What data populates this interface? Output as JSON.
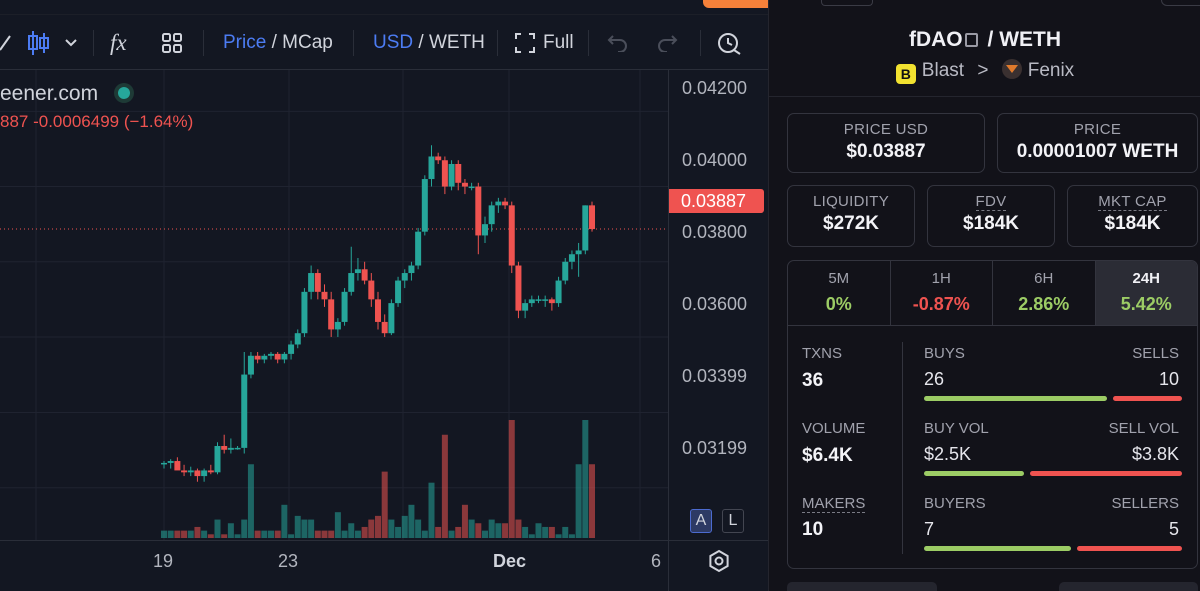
{
  "toolbar": {
    "formula_icon": "fx",
    "price_label": "Price",
    "mcap_label": "MCap",
    "usd_label": "USD",
    "weth_label": "WETH",
    "full_label": "Full",
    "separator": "/"
  },
  "legend": {
    "site": "eener.com",
    "change": "887  -0.0006499 (−1.64%)"
  },
  "axis": {
    "price_ticks": [
      "0.04200",
      "0.04000",
      "0.03800",
      "0.03600",
      "0.03399",
      "0.03199"
    ],
    "current_price_tag": "0.03887",
    "time_ticks": [
      "19",
      "23",
      "Dec",
      "6"
    ],
    "mode_a": "A",
    "mode_l": "L"
  },
  "chart_data": {
    "type": "candlestick",
    "ylim": [
      0.0306,
      0.0431
    ],
    "current_price": 0.03887,
    "candles": [
      {
        "o": 0.03265,
        "h": 0.0327,
        "l": 0.0325,
        "c": 0.03265,
        "v": 2
      },
      {
        "o": 0.03265,
        "h": 0.03275,
        "l": 0.0325,
        "c": 0.0327,
        "v": 2
      },
      {
        "o": 0.0327,
        "h": 0.0328,
        "l": 0.03255,
        "c": 0.03245,
        "v": 2
      },
      {
        "o": 0.03245,
        "h": 0.0326,
        "l": 0.0323,
        "c": 0.0324,
        "v": 2
      },
      {
        "o": 0.0324,
        "h": 0.03255,
        "l": 0.0323,
        "c": 0.03245,
        "v": 2
      },
      {
        "o": 0.03245,
        "h": 0.0325,
        "l": 0.03215,
        "c": 0.0323,
        "v": 3
      },
      {
        "o": 0.0323,
        "h": 0.0325,
        "l": 0.03215,
        "c": 0.03245,
        "v": 2
      },
      {
        "o": 0.03245,
        "h": 0.0326,
        "l": 0.03235,
        "c": 0.0324,
        "v": 1
      },
      {
        "o": 0.0324,
        "h": 0.0332,
        "l": 0.03235,
        "c": 0.0331,
        "v": 5
      },
      {
        "o": 0.0331,
        "h": 0.0334,
        "l": 0.0329,
        "c": 0.033,
        "v": 1
      },
      {
        "o": 0.033,
        "h": 0.0333,
        "l": 0.0329,
        "c": 0.03305,
        "v": 4
      },
      {
        "o": 0.03305,
        "h": 0.0331,
        "l": 0.033,
        "c": 0.03305,
        "v": 1
      },
      {
        "o": 0.03305,
        "h": 0.0356,
        "l": 0.0329,
        "c": 0.035,
        "v": 5
      },
      {
        "o": 0.035,
        "h": 0.0356,
        "l": 0.0349,
        "c": 0.0355,
        "v": 20
      },
      {
        "o": 0.0355,
        "h": 0.0356,
        "l": 0.0353,
        "c": 0.0354,
        "v": 2
      },
      {
        "o": 0.0354,
        "h": 0.03555,
        "l": 0.0353,
        "c": 0.0355,
        "v": 2
      },
      {
        "o": 0.0355,
        "h": 0.0356,
        "l": 0.0354,
        "c": 0.03555,
        "v": 2
      },
      {
        "o": 0.03555,
        "h": 0.0356,
        "l": 0.0353,
        "c": 0.0354,
        "v": 2
      },
      {
        "o": 0.0354,
        "h": 0.0356,
        "l": 0.0353,
        "c": 0.03555,
        "v": 9
      },
      {
        "o": 0.03555,
        "h": 0.0359,
        "l": 0.0354,
        "c": 0.0358,
        "v": 1
      },
      {
        "o": 0.0358,
        "h": 0.0362,
        "l": 0.0357,
        "c": 0.0361,
        "v": 6
      },
      {
        "o": 0.0361,
        "h": 0.0373,
        "l": 0.036,
        "c": 0.0372,
        "v": 5
      },
      {
        "o": 0.0372,
        "h": 0.0379,
        "l": 0.037,
        "c": 0.0377,
        "v": 5
      },
      {
        "o": 0.0377,
        "h": 0.0378,
        "l": 0.037,
        "c": 0.0372,
        "v": 2
      },
      {
        "o": 0.0372,
        "h": 0.0374,
        "l": 0.0368,
        "c": 0.037,
        "v": 2
      },
      {
        "o": 0.037,
        "h": 0.0372,
        "l": 0.036,
        "c": 0.0362,
        "v": 2
      },
      {
        "o": 0.0362,
        "h": 0.0365,
        "l": 0.036,
        "c": 0.0364,
        "v": 7
      },
      {
        "o": 0.0364,
        "h": 0.0373,
        "l": 0.0363,
        "c": 0.0372,
        "v": 2
      },
      {
        "o": 0.0372,
        "h": 0.0384,
        "l": 0.0371,
        "c": 0.0377,
        "v": 4
      },
      {
        "o": 0.0377,
        "h": 0.0381,
        "l": 0.0375,
        "c": 0.0378,
        "v": 2
      },
      {
        "o": 0.0378,
        "h": 0.038,
        "l": 0.0374,
        "c": 0.0375,
        "v": 3
      },
      {
        "o": 0.0375,
        "h": 0.0377,
        "l": 0.0368,
        "c": 0.037,
        "v": 5
      },
      {
        "o": 0.037,
        "h": 0.0372,
        "l": 0.0362,
        "c": 0.0364,
        "v": 6
      },
      {
        "o": 0.0364,
        "h": 0.0366,
        "l": 0.036,
        "c": 0.0361,
        "v": 18
      },
      {
        "o": 0.0361,
        "h": 0.037,
        "l": 0.03605,
        "c": 0.0369,
        "v": 5
      },
      {
        "o": 0.0369,
        "h": 0.0376,
        "l": 0.0368,
        "c": 0.0375,
        "v": 3
      },
      {
        "o": 0.0375,
        "h": 0.0378,
        "l": 0.0373,
        "c": 0.0377,
        "v": 6
      },
      {
        "o": 0.0377,
        "h": 0.038,
        "l": 0.0375,
        "c": 0.0379,
        "v": 9
      },
      {
        "o": 0.0379,
        "h": 0.0389,
        "l": 0.0378,
        "c": 0.0388,
        "v": 5
      },
      {
        "o": 0.0388,
        "h": 0.0403,
        "l": 0.0387,
        "c": 0.0402,
        "v": 2
      },
      {
        "o": 0.0402,
        "h": 0.0411,
        "l": 0.04,
        "c": 0.0408,
        "v": 15
      },
      {
        "o": 0.0408,
        "h": 0.0409,
        "l": 0.0406,
        "c": 0.0407,
        "v": 3
      },
      {
        "o": 0.0407,
        "h": 0.0408,
        "l": 0.0398,
        "c": 0.04,
        "v": 28
      },
      {
        "o": 0.04,
        "h": 0.0407,
        "l": 0.0399,
        "c": 0.0406,
        "v": 2
      },
      {
        "o": 0.0406,
        "h": 0.0407,
        "l": 0.0399,
        "c": 0.0401,
        "v": 3
      },
      {
        "o": 0.0401,
        "h": 0.0402,
        "l": 0.0398,
        "c": 0.04,
        "v": 9
      },
      {
        "o": 0.04,
        "h": 0.0401,
        "l": 0.0399,
        "c": 0.04,
        "v": 5
      },
      {
        "o": 0.04,
        "h": 0.0401,
        "l": 0.0382,
        "c": 0.0387,
        "v": 4
      },
      {
        "o": 0.0387,
        "h": 0.0392,
        "l": 0.0385,
        "c": 0.039,
        "v": 2
      },
      {
        "o": 0.039,
        "h": 0.0396,
        "l": 0.0388,
        "c": 0.0395,
        "v": 5
      },
      {
        "o": 0.0395,
        "h": 0.0397,
        "l": 0.0393,
        "c": 0.0396,
        "v": 4
      },
      {
        "o": 0.0396,
        "h": 0.0397,
        "l": 0.0394,
        "c": 0.0395,
        "v": 4
      },
      {
        "o": 0.0395,
        "h": 0.0396,
        "l": 0.0377,
        "c": 0.0379,
        "v": 32
      },
      {
        "o": 0.0379,
        "h": 0.038,
        "l": 0.0365,
        "c": 0.0367,
        "v": 5
      },
      {
        "o": 0.0367,
        "h": 0.037,
        "l": 0.0365,
        "c": 0.0369,
        "v": 3
      },
      {
        "o": 0.0369,
        "h": 0.0371,
        "l": 0.0368,
        "c": 0.037,
        "v": 1
      },
      {
        "o": 0.037,
        "h": 0.0371,
        "l": 0.0369,
        "c": 0.037,
        "v": 4
      },
      {
        "o": 0.037,
        "h": 0.0371,
        "l": 0.0368,
        "c": 0.037,
        "v": 3
      },
      {
        "o": 0.037,
        "h": 0.03705,
        "l": 0.0367,
        "c": 0.0369,
        "v": 3
      },
      {
        "o": 0.0369,
        "h": 0.0376,
        "l": 0.0368,
        "c": 0.0375,
        "v": 1
      },
      {
        "o": 0.0375,
        "h": 0.0381,
        "l": 0.0374,
        "c": 0.038,
        "v": 3
      },
      {
        "o": 0.038,
        "h": 0.0383,
        "l": 0.0378,
        "c": 0.0382,
        "v": 1
      },
      {
        "o": 0.0382,
        "h": 0.0385,
        "l": 0.0376,
        "c": 0.0383,
        "v": 20
      },
      {
        "o": 0.0383,
        "h": 0.0395,
        "l": 0.0382,
        "c": 0.0395,
        "v": 32
      },
      {
        "o": 0.0395,
        "h": 0.0396,
        "l": 0.0388,
        "c": 0.03887,
        "v": 20
      }
    ]
  },
  "pair": {
    "base": "fDAO",
    "quote": "WETH",
    "separator": "/",
    "chain": "Blast",
    "chain_badge": "B",
    "breadcrumb_arrow": ">",
    "dex": "Fenix"
  },
  "stats_top": {
    "price_usd_label": "PRICE USD",
    "price_usd": "$0.03887",
    "price_label": "PRICE",
    "price": "0.00001007 WETH",
    "liquidity_label": "LIQUIDITY",
    "liquidity": "$272K",
    "fdv_label": "FDV",
    "fdv": "$184K",
    "mktcap_label": "MKT CAP",
    "mktcap": "$184K"
  },
  "timeframes": [
    {
      "label": "5M",
      "value": "0%",
      "sign": "pos"
    },
    {
      "label": "1H",
      "value": "-0.87%",
      "sign": "neg"
    },
    {
      "label": "6H",
      "value": "2.86%",
      "sign": "pos"
    },
    {
      "label": "24H",
      "value": "5.42%",
      "sign": "pos"
    }
  ],
  "txn_stats": {
    "txns_label": "TXNS",
    "txns": "36",
    "buys_label": "BUYS",
    "buys": "26",
    "sells_label": "SELLS",
    "sells": "10",
    "volume_label": "VOLUME",
    "volume": "$6.4K",
    "buy_vol_label": "BUY VOL",
    "buy_vol": "$2.5K",
    "sell_vol_label": "SELL VOL",
    "sell_vol": "$3.8K",
    "makers_label": "MAKERS",
    "makers": "10",
    "buyers_label": "BUYERS",
    "buyers": "7",
    "sellers_label": "SELLERS",
    "sellers": "5",
    "buys_ratio": 0.72,
    "buy_vol_ratio": 0.4,
    "buyers_ratio": 0.58
  },
  "colors": {
    "up": "#26a69a",
    "down": "#ef5350",
    "accent": "#4c7cf3",
    "positive_text": "#9ccc65"
  }
}
